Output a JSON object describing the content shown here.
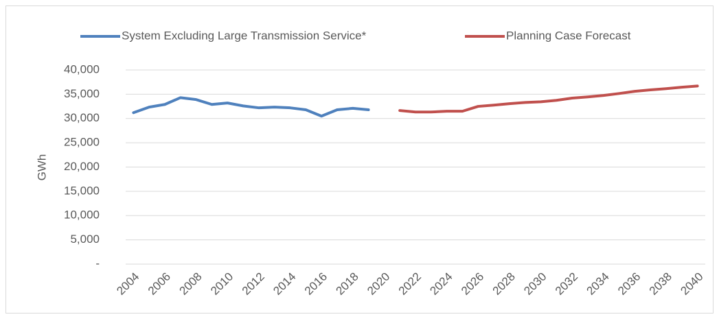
{
  "chart_data": {
    "type": "line",
    "y_label": "GWh",
    "categories": [
      "2004",
      null,
      "2006",
      null,
      "2008",
      null,
      "2010",
      null,
      "2012",
      null,
      "2014",
      null,
      "2016",
      null,
      "2018",
      null,
      "2020",
      null,
      "2022",
      null,
      "2024",
      null,
      "2026",
      null,
      "2028",
      null,
      "2030",
      null,
      "2032",
      null,
      "2034",
      null,
      "2036",
      null,
      "2038",
      null,
      "2040"
    ],
    "series": [
      {
        "name": "System Excluding Large Transmission Service*",
        "color": "#4f81bd",
        "values": [
          31200,
          32350,
          32900,
          34300,
          33900,
          32900,
          33200,
          32600,
          32200,
          32350,
          32200,
          31800,
          30500,
          31800,
          32100,
          31800,
          null,
          null,
          null,
          null,
          null,
          null,
          null,
          null,
          null,
          null,
          null,
          null,
          null,
          null,
          null,
          null,
          null,
          null,
          null,
          null,
          null
        ]
      },
      {
        "name": "Planning Case Forecast",
        "color": "#c0504d",
        "values": [
          null,
          null,
          null,
          null,
          null,
          null,
          null,
          null,
          null,
          null,
          null,
          null,
          null,
          null,
          null,
          null,
          null,
          31650,
          31350,
          31350,
          31500,
          31500,
          32500,
          32750,
          33050,
          33300,
          33450,
          33750,
          34200,
          34450,
          34750,
          35150,
          35600,
          35900,
          36150,
          36450,
          36700
        ]
      }
    ],
    "ylim": [
      0,
      40000
    ],
    "yticks": [
      {
        "value": 0,
        "label": "-"
      },
      {
        "value": 5000,
        "label": "5,000"
      },
      {
        "value": 10000,
        "label": "10,000"
      },
      {
        "value": 15000,
        "label": "15,000"
      },
      {
        "value": 20000,
        "label": "20,000"
      },
      {
        "value": 25000,
        "label": "25,000"
      },
      {
        "value": 30000,
        "label": "30,000"
      },
      {
        "value": 35000,
        "label": "35,000"
      },
      {
        "value": 40000,
        "label": "40,000"
      }
    ],
    "grid": true,
    "legend": "top"
  }
}
